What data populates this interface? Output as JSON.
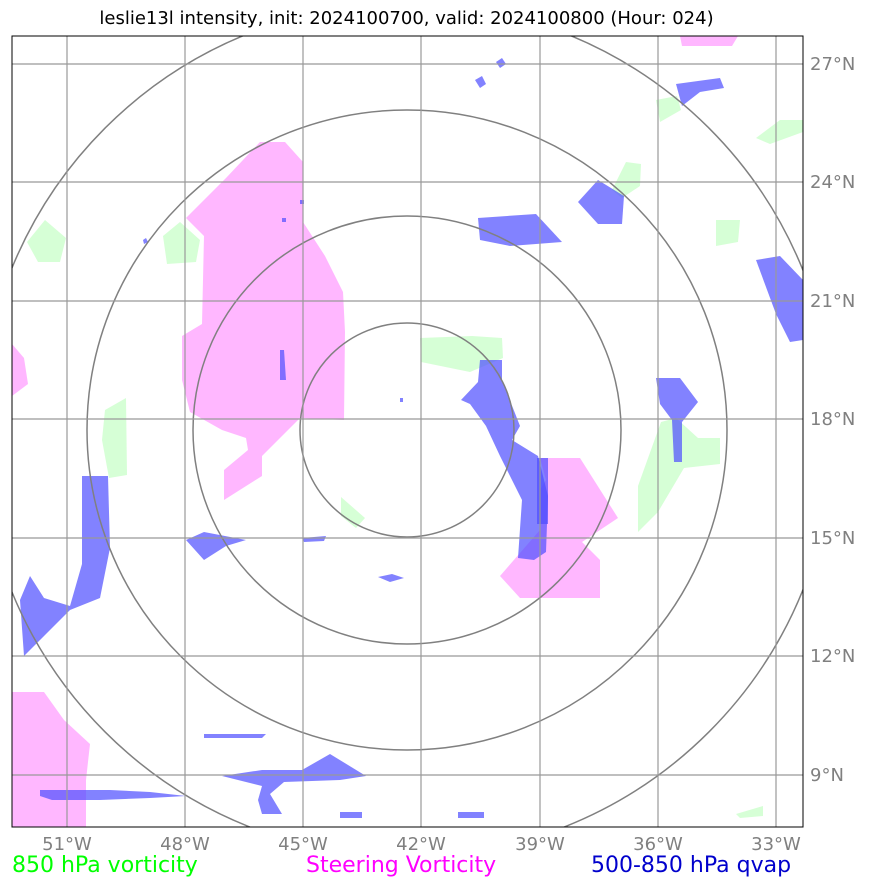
{
  "title": "leslie13l intensity, init: 2024100700, valid: 2024100800 (Hour: 024)",
  "lon_ticks": [
    "51°W",
    "48°W",
    "45°W",
    "42°W",
    "39°W",
    "36°W",
    "33°W"
  ],
  "lat_ticks": [
    "27°N",
    "24°N",
    "21°N",
    "18°N",
    "15°N",
    "12°N",
    "9°N"
  ],
  "legend": [
    {
      "label": "850 hPa vorticity",
      "color": "#00ff00"
    },
    {
      "label": "Steering Vorticity",
      "color": "#ff00ff"
    },
    {
      "label": "500-850 hPa qvap",
      "color": "#0000cc"
    }
  ],
  "colors": {
    "vorticity850_fill": "#ccffcc",
    "steering_fill": "#ff99ff",
    "qvap_fill": "#4d4dff",
    "grid": "#999999",
    "range_rings": "#808080"
  }
}
